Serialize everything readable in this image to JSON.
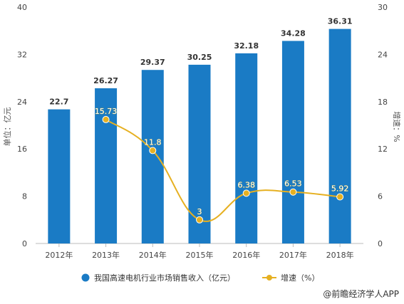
{
  "chart_data": {
    "type": "bar",
    "categories": [
      "2012年",
      "2013年",
      "2014年",
      "2015年",
      "2016年",
      "2017年",
      "2018年"
    ],
    "series": [
      {
        "name": "我国高速电机行业市场销售收入（亿元）",
        "type": "bar",
        "axis": "left",
        "values": [
          22.7,
          26.27,
          29.37,
          30.25,
          32.18,
          34.28,
          36.31
        ]
      },
      {
        "name": "增速（%）",
        "type": "line",
        "axis": "right",
        "values": [
          null,
          15.73,
          11.8,
          3,
          6.38,
          6.53,
          5.92
        ]
      }
    ],
    "ylabel": "单位：亿元",
    "y2label": "增速：%",
    "ylim": [
      0,
      40
    ],
    "y2lim": [
      0,
      30
    ],
    "yticks": [
      0,
      8,
      16,
      24,
      32,
      40
    ],
    "y2ticks": [
      0,
      6,
      12,
      18,
      24,
      30
    ],
    "grid": false,
    "legend_position": "bottom"
  },
  "colors": {
    "bar": "#1a7bc5",
    "line": "#e6b021"
  },
  "source": "@前瞻经济学人APP"
}
